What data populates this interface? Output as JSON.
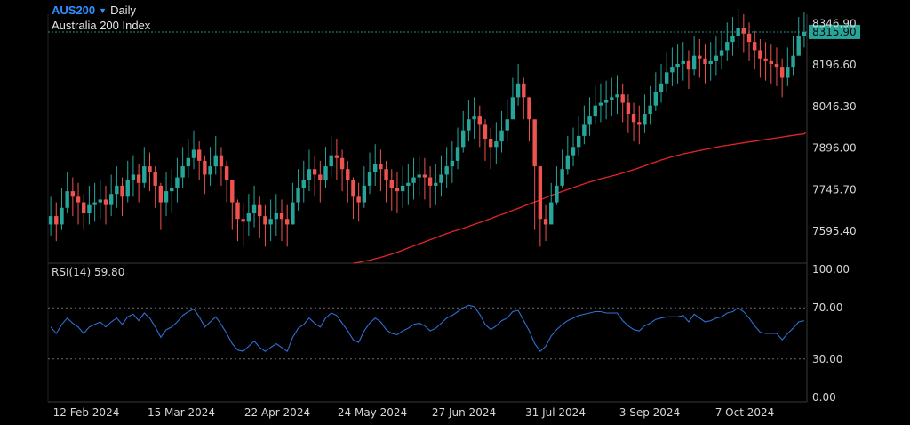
{
  "header": {
    "symbol": "AUS200",
    "timeframe": "Daily",
    "instrument_name": "Australia 200 Index"
  },
  "rsi": {
    "label": "RSI(14)",
    "value": "59.80"
  },
  "colors": {
    "up": "#26a69a",
    "down": "#ef5350",
    "ma": "#e0252a",
    "rsi": "#2f6fd6",
    "symbol": "#2f8fff",
    "price_tag": "#26a69a"
  },
  "chart_data": [
    {
      "type": "candlestick",
      "title": "AUS200 Daily",
      "ylim": [
        7480,
        8380
      ],
      "y_ticks": [
        "8346.90",
        "8196.60",
        "8046.30",
        "7896.00",
        "7745.70",
        "7595.40"
      ],
      "x_ticks": [
        "12 Feb 2024",
        "15 Mar 2024",
        "22 Apr 2024",
        "24 May 2024",
        "27 Jun 2024",
        "31 Jul 2024",
        "3 Sep 2024",
        "7 Oct 2024"
      ],
      "last_price": "8315.90",
      "series": [
        {
          "name": "price",
          "close": [
            7650,
            7620,
            7680,
            7740,
            7720,
            7700,
            7660,
            7690,
            7700,
            7710,
            7690,
            7730,
            7760,
            7720,
            7780,
            7800,
            7770,
            7830,
            7810,
            7760,
            7700,
            7740,
            7750,
            7790,
            7830,
            7860,
            7890,
            7850,
            7800,
            7830,
            7870,
            7830,
            7780,
            7700,
            7640,
            7630,
            7660,
            7690,
            7650,
            7620,
            7640,
            7660,
            7640,
            7620,
            7700,
            7750,
            7780,
            7820,
            7800,
            7780,
            7830,
            7870,
            7860,
            7820,
            7780,
            7720,
            7700,
            7760,
            7810,
            7840,
            7820,
            7780,
            7750,
            7740,
            7760,
            7770,
            7790,
            7800,
            7790,
            7760,
            7770,
            7800,
            7830,
            7850,
            7900,
            7960,
            8000,
            8010,
            7980,
            7930,
            7900,
            7920,
            7960,
            8000,
            8080,
            8130,
            8080,
            8000,
            7830,
            7640,
            7620,
            7700,
            7760,
            7820,
            7870,
            7900,
            7940,
            7980,
            8010,
            8050,
            8060,
            8070,
            8080,
            8090,
            8060,
            8020,
            7990,
            7980,
            8020,
            8050,
            8100,
            8130,
            8170,
            8190,
            8200,
            8210,
            8180,
            8230,
            8220,
            8200,
            8210,
            8230,
            8250,
            8280,
            8300,
            8330,
            8310,
            8280,
            8250,
            8220,
            8210,
            8200,
            8190,
            8150,
            8190,
            8230,
            8300,
            8316
          ],
          "low": [
            7580,
            7560,
            7600,
            7660,
            7650,
            7620,
            7600,
            7620,
            7630,
            7640,
            7620,
            7650,
            7680,
            7650,
            7700,
            7720,
            7700,
            7750,
            7740,
            7680,
            7600,
            7650,
            7660,
            7700,
            7750,
            7790,
            7820,
            7780,
            7730,
            7760,
            7800,
            7760,
            7700,
            7600,
            7560,
            7540,
            7580,
            7610,
            7570,
            7540,
            7560,
            7580,
            7560,
            7540,
            7620,
            7670,
            7700,
            7740,
            7720,
            7700,
            7750,
            7790,
            7780,
            7740,
            7700,
            7640,
            7630,
            7680,
            7730,
            7760,
            7740,
            7700,
            7670,
            7660,
            7680,
            7690,
            7710,
            7720,
            7710,
            7680,
            7690,
            7720,
            7750,
            7770,
            7820,
            7880,
            7920,
            7930,
            7900,
            7850,
            7820,
            7840,
            7880,
            7920,
            8000,
            8050,
            8000,
            7920,
            7600,
            7540,
            7560,
            7630,
            7690,
            7750,
            7800,
            7830,
            7870,
            7910,
            7940,
            7980,
            7990,
            8000,
            8010,
            8020,
            7990,
            7950,
            7920,
            7910,
            7950,
            7980,
            8030,
            8060,
            8100,
            8120,
            8130,
            8140,
            8110,
            8160,
            8150,
            8130,
            8140,
            8160,
            8180,
            8210,
            8230,
            8260,
            8240,
            8210,
            8180,
            8150,
            8140,
            8130,
            8120,
            8080,
            8120,
            8160,
            8230,
            8260
          ],
          "high": [
            7720,
            7700,
            7750,
            7810,
            7790,
            7770,
            7730,
            7760,
            7770,
            7780,
            7760,
            7800,
            7830,
            7790,
            7850,
            7870,
            7840,
            7900,
            7880,
            7830,
            7770,
            7810,
            7820,
            7860,
            7900,
            7930,
            7960,
            7920,
            7870,
            7900,
            7940,
            7900,
            7850,
            7770,
            7710,
            7700,
            7730,
            7760,
            7720,
            7690,
            7710,
            7730,
            7710,
            7690,
            7770,
            7820,
            7850,
            7890,
            7870,
            7850,
            7900,
            7940,
            7930,
            7890,
            7850,
            7790,
            7770,
            7830,
            7880,
            7910,
            7890,
            7850,
            7820,
            7810,
            7830,
            7840,
            7860,
            7870,
            7860,
            7830,
            7840,
            7870,
            7900,
            7920,
            7970,
            8030,
            8070,
            8080,
            8050,
            8000,
            7970,
            7990,
            8030,
            8070,
            8150,
            8200,
            8150,
            8070,
            7900,
            7710,
            7690,
            7770,
            7830,
            7890,
            7940,
            7970,
            8010,
            8050,
            8080,
            8120,
            8130,
            8140,
            8150,
            8160,
            8130,
            8090,
            8060,
            8050,
            8090,
            8120,
            8170,
            8200,
            8240,
            8260,
            8270,
            8280,
            8250,
            8300,
            8290,
            8270,
            8280,
            8300,
            8320,
            8350,
            8370,
            8400,
            8380,
            8350,
            8320,
            8290,
            8280,
            8270,
            8260,
            8220,
            8260,
            8300,
            8370,
            8386
          ]
        },
        {
          "name": "moving average",
          "x_index_start": 55,
          "values": [
            7480,
            7483,
            7487,
            7491,
            7496,
            7501,
            7507,
            7513,
            7520,
            7527,
            7535,
            7542,
            7550,
            7557,
            7565,
            7572,
            7580,
            7587,
            7594,
            7600,
            7606,
            7613,
            7620,
            7627,
            7634,
            7641,
            7649,
            7656,
            7663,
            7671,
            7678,
            7686,
            7694,
            7701,
            7709,
            7717,
            7725,
            7732,
            7739,
            7746,
            7753,
            7760,
            7767,
            7773,
            7779,
            7785,
            7790,
            7795,
            7800,
            7806,
            7812,
            7818,
            7825,
            7832,
            7839,
            7846,
            7853,
            7859,
            7865,
            7870,
            7875,
            7879,
            7883,
            7887,
            7891,
            7895,
            7899,
            7903,
            7906,
            7909,
            7912,
            7915,
            7918,
            7921,
            7924,
            7927,
            7930,
            7933,
            7936,
            7939,
            7942,
            7945,
            7947,
            7950,
            7953
          ]
        }
      ]
    },
    {
      "type": "line",
      "title": "RSI(14)",
      "ylim": [
        0,
        100
      ],
      "y_ticks": [
        "100.00",
        "70.00",
        "30.00",
        "0.00"
      ],
      "series": [
        {
          "name": "RSI(14)",
          "values": [
            55,
            50,
            57,
            62,
            58,
            55,
            50,
            55,
            57,
            59,
            55,
            59,
            62,
            57,
            63,
            65,
            60,
            66,
            62,
            55,
            47,
            53,
            55,
            59,
            64,
            67,
            69,
            63,
            55,
            59,
            63,
            57,
            50,
            42,
            37,
            36,
            40,
            44,
            39,
            36,
            39,
            42,
            39,
            36,
            47,
            54,
            57,
            62,
            58,
            55,
            62,
            66,
            64,
            58,
            52,
            45,
            43,
            52,
            58,
            62,
            59,
            53,
            50,
            49,
            52,
            54,
            57,
            58,
            56,
            52,
            54,
            58,
            62,
            64,
            67,
            70,
            72,
            71,
            65,
            57,
            53,
            56,
            60,
            62,
            67,
            68,
            60,
            52,
            42,
            36,
            40,
            48,
            53,
            57,
            60,
            62,
            64,
            65,
            66,
            67,
            67,
            66,
            66,
            66,
            60,
            56,
            53,
            52,
            56,
            58,
            61,
            62,
            63,
            63,
            63,
            64,
            59,
            65,
            62,
            59,
            60,
            62,
            63,
            66,
            67,
            70,
            67,
            62,
            56,
            51,
            50,
            50,
            50,
            45,
            50,
            54,
            59,
            60
          ]
        }
      ]
    }
  ]
}
